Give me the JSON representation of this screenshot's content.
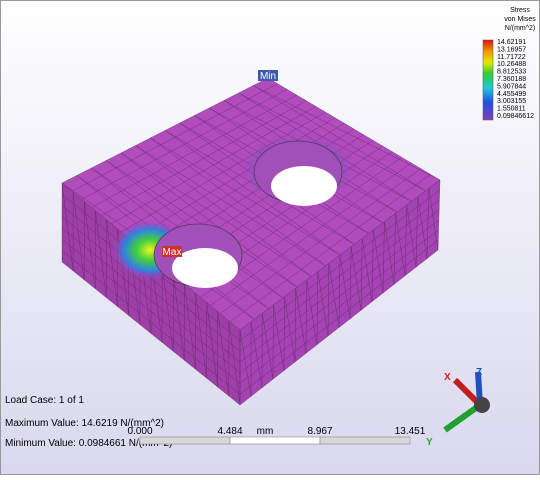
{
  "legend": {
    "title": [
      "Stress",
      "von Mises",
      "N/(mm^2)"
    ],
    "values": [
      "14.62191",
      "13.16957",
      "11.71722",
      "10.26488",
      "8.812533",
      "7.360188",
      "5.907844",
      "4.455499",
      "3.003155",
      "1.550811",
      "0.09846612"
    ]
  },
  "markers": {
    "min": "Min",
    "max": "Max"
  },
  "info": {
    "load_case": "Load Case:  1 of 1",
    "maximum": "Maximum Value: 14.6219 N/(mm^2)",
    "minimum": "Minimum Value: 0.0984661 N/(mm^2)"
  },
  "scale_bar": {
    "ticks": [
      "0.000",
      "4.484",
      "8.967",
      "13.451"
    ],
    "unit": "mm"
  },
  "triad": {
    "x": "X",
    "y": "Y",
    "z": "Z"
  }
}
